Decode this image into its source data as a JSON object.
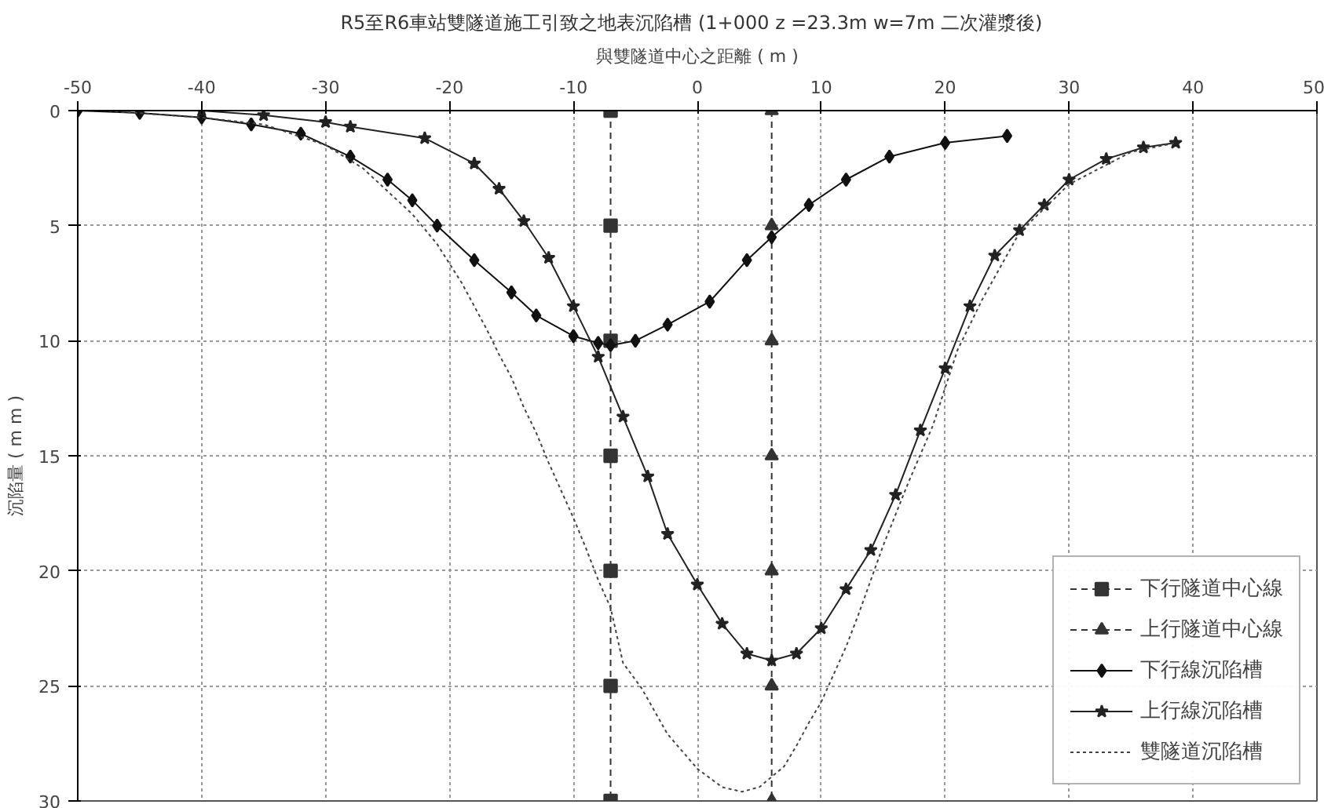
{
  "chart_data": {
    "type": "line",
    "title": "R5至R6車站雙隧道施工引致之地表沉陷槽 (1+000  z =23.3m  w=7m 二次灌漿後)",
    "xlabel": "與雙隧道中心之距離 ( m )",
    "ylabel": "沉陷量 ( m m )",
    "xlim": [
      -50,
      50
    ],
    "xticks": [
      -50,
      -40,
      -30,
      -20,
      -10,
      0,
      10,
      20,
      30,
      40,
      50
    ],
    "ylim": [
      30,
      0
    ],
    "yticks": [
      0,
      5,
      10,
      15,
      20,
      25,
      30
    ],
    "grid": true,
    "legend": "bottom right",
    "series": [
      {
        "name": "下行隧道中心線",
        "color": "#333333",
        "marker": "square",
        "line_style": "dashed",
        "x": [
          -7,
          -7,
          -7,
          -7,
          -7,
          -7,
          -7
        ],
        "values": [
          0,
          5,
          10,
          15,
          20,
          25,
          30
        ]
      },
      {
        "name": "上行隧道中心線",
        "color": "#333333",
        "marker": "triangle",
        "line_style": "dashed",
        "x": [
          6,
          6,
          6,
          6,
          6,
          6,
          6
        ],
        "values": [
          0,
          5,
          10,
          15,
          20,
          25,
          30
        ]
      },
      {
        "name": "下行線沉陷槽",
        "color": "#111111",
        "marker": "diamond",
        "line_style": "solid",
        "x": [
          -50,
          -45,
          -40,
          -36,
          -32,
          -28,
          -25,
          -23,
          -21,
          -18,
          -15,
          -13,
          -10,
          -8,
          -7,
          -5,
          -2.4,
          1,
          4,
          6,
          9,
          12,
          15.5,
          20,
          25
        ],
        "values": [
          0,
          0.1,
          0.3,
          0.6,
          1.0,
          2.0,
          3.0,
          3.9,
          5.0,
          6.5,
          7.9,
          8.9,
          9.8,
          10.1,
          10.2,
          10,
          9.3,
          8.3,
          6.5,
          5.5,
          4.1,
          3.0,
          2.0,
          1.4,
          1.1
        ]
      },
      {
        "name": "上行線沉陷槽",
        "color": "#222222",
        "marker": "star",
        "line_style": "solid",
        "x": [
          -40,
          -35,
          -30,
          -28,
          -22,
          -18,
          -16,
          -14,
          -12,
          -10,
          -8,
          -6,
          -4,
          -2.4,
          0,
          2,
          4,
          6,
          8,
          10,
          12,
          14,
          16,
          18,
          20,
          22,
          24,
          26,
          28,
          30,
          33,
          36,
          38.6
        ],
        "values": [
          0,
          0.2,
          0.5,
          0.7,
          1.2,
          2.3,
          3.4,
          4.8,
          6.4,
          8.5,
          10.7,
          13.3,
          15.9,
          18.4,
          20.6,
          22.3,
          23.6,
          23.9,
          23.6,
          22.5,
          20.8,
          19.1,
          16.7,
          13.9,
          11.2,
          8.5,
          6.3,
          5.2,
          4.1,
          3.0,
          2.1,
          1.6,
          1.4
        ]
      },
      {
        "name": "雙隧道沉陷槽",
        "color": "#444444",
        "marker": "none",
        "line_style": "dotted",
        "x": [
          -48,
          -40,
          -35,
          -30,
          -27,
          -24,
          -23,
          -21,
          -19,
          -18,
          -17,
          -16,
          -15,
          -14,
          -13,
          -12,
          -11,
          -10,
          -9,
          -8,
          -7,
          -6,
          -4.5,
          -2.4,
          0,
          2,
          3.6,
          5,
          7,
          8,
          9,
          10,
          11,
          12,
          13,
          14,
          15,
          17,
          19,
          21,
          23,
          26,
          30,
          35,
          38.6
        ],
        "values": [
          0,
          0.3,
          0.6,
          1.5,
          2.5,
          4.0,
          4.5,
          5.8,
          7.5,
          8.5,
          9.5,
          10.6,
          11.6,
          12.9,
          14.0,
          15.3,
          16.5,
          17.7,
          19.0,
          20.4,
          21.6,
          24.0,
          25.1,
          27.1,
          28.6,
          29.4,
          29.6,
          29.4,
          28.5,
          27.6,
          26.6,
          25.7,
          24.5,
          23.3,
          21.9,
          20.4,
          18.9,
          16.2,
          13.7,
          10.4,
          8.2,
          5.3,
          3.2,
          1.8,
          1.4
        ]
      }
    ]
  }
}
